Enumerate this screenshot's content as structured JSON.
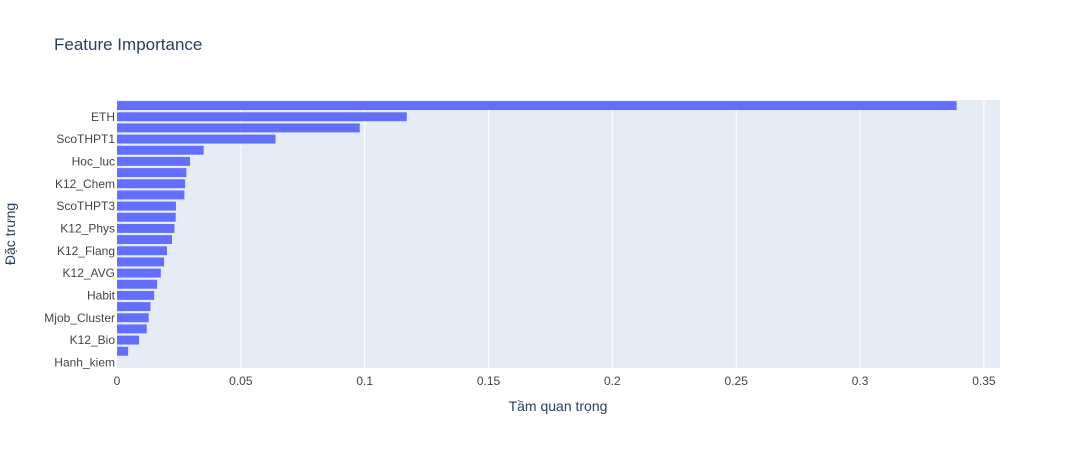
{
  "chart_data": {
    "type": "bar",
    "orientation": "horizontal",
    "title": "Feature Importance",
    "xlabel": "Tầm quan trọng",
    "ylabel": "Đặc trưng",
    "xlim": [
      0,
      0.3565
    ],
    "xticks": [
      0,
      0.05,
      0.1,
      0.15,
      0.2,
      0.25,
      0.3,
      0.35
    ],
    "xtick_labels": [
      "0",
      "0.05",
      "0.1",
      "0.15",
      "0.2",
      "0.25",
      "0.3",
      "0.35"
    ],
    "grid": true,
    "legend": "none",
    "bar_count": 24,
    "bars_top_to_bottom": [
      {
        "label": "",
        "value": 0.339
      },
      {
        "label": "ETH",
        "value": 0.117
      },
      {
        "label": "",
        "value": 0.098
      },
      {
        "label": "ScoTHPT1",
        "value": 0.064
      },
      {
        "label": "",
        "value": 0.035
      },
      {
        "label": "Hoc_luc",
        "value": 0.0295
      },
      {
        "label": "",
        "value": 0.028
      },
      {
        "label": "K12_Chem",
        "value": 0.0275
      },
      {
        "label": "",
        "value": 0.0272
      },
      {
        "label": "ScoTHPT3",
        "value": 0.0238
      },
      {
        "label": "",
        "value": 0.0237
      },
      {
        "label": "K12_Phys",
        "value": 0.0232
      },
      {
        "label": "",
        "value": 0.0222
      },
      {
        "label": "K12_Flang",
        "value": 0.0202
      },
      {
        "label": "",
        "value": 0.019
      },
      {
        "label": "K12_AVG",
        "value": 0.0177
      },
      {
        "label": "",
        "value": 0.0162
      },
      {
        "label": "Habit",
        "value": 0.015
      },
      {
        "label": "",
        "value": 0.0135
      },
      {
        "label": "Mjob_Cluster",
        "value": 0.0128
      },
      {
        "label": "",
        "value": 0.012
      },
      {
        "label": "K12_Bio",
        "value": 0.0089
      },
      {
        "label": "",
        "value": 0.0045
      },
      {
        "label": "Hanh_kiem",
        "value": 0.0
      }
    ]
  },
  "colors": {
    "bar": "#636efa",
    "plot_bg": "#e5ecf6",
    "grid": "#ffffff",
    "text": "#2a3f5f",
    "tick_text": "#444444"
  }
}
